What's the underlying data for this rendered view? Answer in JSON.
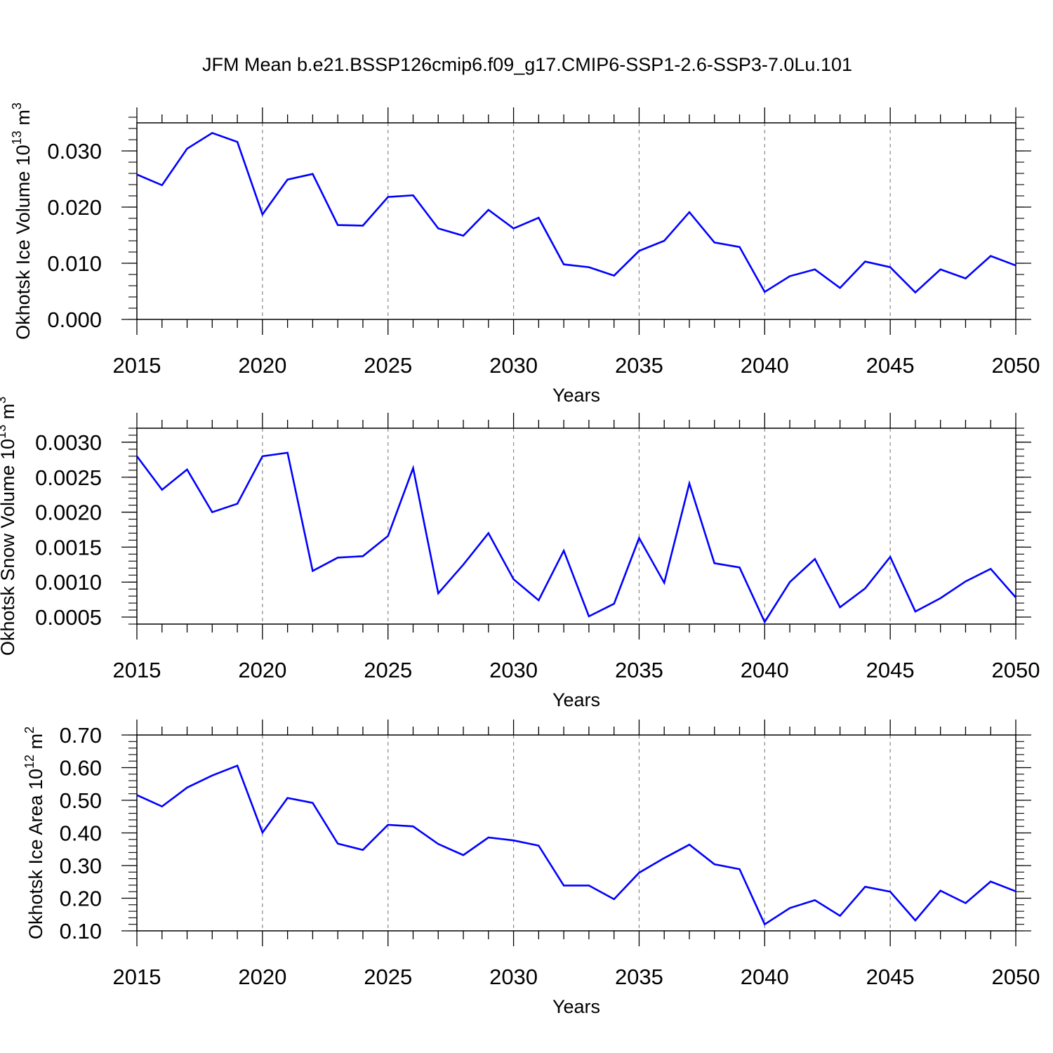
{
  "title": "JFM Mean b.e21.BSSP126cmip6.f09_g17.CMIP6-SSP1-2.6-SSP3-7.0Lu.101",
  "line_color": "#0000ff",
  "chart_data": [
    {
      "type": "line",
      "ylabel_main": "Okhotsk Ice Volume 10",
      "ylabel_exp": "13",
      "ylabel_unit": " m",
      "ylabel_unit_exp": "3",
      "xlabel": "Years",
      "xlim": [
        2015,
        2050
      ],
      "ylim": [
        0.0,
        0.035
      ],
      "yticks": [
        0.0,
        0.01,
        0.02,
        0.03
      ],
      "ytick_labels": [
        "0.000",
        "0.010",
        "0.020",
        "0.030"
      ],
      "yminor_step": 0.002,
      "xticks": [
        2015,
        2020,
        2025,
        2030,
        2035,
        2040,
        2045,
        2050
      ],
      "xtick_labels": [
        "2015",
        "2020",
        "2025",
        "2030",
        "2035",
        "2040",
        "2045",
        "2050"
      ],
      "grid": "vertical dashed",
      "x": [
        2015,
        2016,
        2017,
        2018,
        2019,
        2020,
        2021,
        2022,
        2023,
        2024,
        2025,
        2026,
        2027,
        2028,
        2029,
        2030,
        2031,
        2032,
        2033,
        2034,
        2035,
        2036,
        2037,
        2038,
        2039,
        2040,
        2041,
        2042,
        2043,
        2044,
        2045,
        2046,
        2047,
        2048,
        2049,
        2050
      ],
      "y": [
        0.0258,
        0.0239,
        0.0304,
        0.0332,
        0.0316,
        0.0187,
        0.0249,
        0.0259,
        0.0168,
        0.0167,
        0.0218,
        0.0221,
        0.0162,
        0.0149,
        0.0195,
        0.0162,
        0.0181,
        0.0098,
        0.0093,
        0.0078,
        0.0122,
        0.014,
        0.0191,
        0.0137,
        0.0129,
        0.0049,
        0.0077,
        0.0089,
        0.0056,
        0.0103,
        0.0093,
        0.0048,
        0.0089,
        0.0073,
        0.0113,
        0.0096
      ]
    },
    {
      "type": "line",
      "ylabel_main": "Okhotsk Snow Volume 10",
      "ylabel_exp": "13",
      "ylabel_unit": " m",
      "ylabel_unit_exp": "3",
      "xlabel": "Years",
      "xlim": [
        2015,
        2050
      ],
      "ylim": [
        0.0004,
        0.0032
      ],
      "yticks": [
        0.0005,
        0.001,
        0.0015,
        0.002,
        0.0025,
        0.003
      ],
      "ytick_labels": [
        "0.0005",
        "0.0010",
        "0.0015",
        "0.0020",
        "0.0025",
        "0.0030"
      ],
      "yminor_step": 0.0001,
      "xticks": [
        2015,
        2020,
        2025,
        2030,
        2035,
        2040,
        2045,
        2050
      ],
      "xtick_labels": [
        "2015",
        "2020",
        "2025",
        "2030",
        "2035",
        "2040",
        "2045",
        "2050"
      ],
      "grid": "vertical dashed",
      "x": [
        2015,
        2016,
        2017,
        2018,
        2019,
        2020,
        2021,
        2022,
        2023,
        2024,
        2025,
        2026,
        2027,
        2028,
        2029,
        2030,
        2031,
        2032,
        2033,
        2034,
        2035,
        2036,
        2037,
        2038,
        2039,
        2040,
        2041,
        2042,
        2043,
        2044,
        2045,
        2046,
        2047,
        2048,
        2049,
        2050
      ],
      "y": [
        0.0028,
        0.00232,
        0.00261,
        0.002,
        0.00212,
        0.0028,
        0.00285,
        0.00116,
        0.00135,
        0.00137,
        0.00166,
        0.00263,
        0.00084,
        0.00125,
        0.0017,
        0.00104,
        0.00074,
        0.00145,
        0.00051,
        0.00069,
        0.00163,
        0.00099,
        0.00241,
        0.00127,
        0.00121,
        0.00043,
        0.001,
        0.00133,
        0.00064,
        0.00091,
        0.00136,
        0.00058,
        0.00077,
        0.00101,
        0.00119,
        0.00078
      ]
    },
    {
      "type": "line",
      "ylabel_main": "Okhotsk Ice Area 10",
      "ylabel_exp": "12",
      "ylabel_unit": " m",
      "ylabel_unit_exp": "2",
      "xlabel": "Years",
      "xlim": [
        2015,
        2050
      ],
      "ylim": [
        0.1,
        0.7
      ],
      "yticks": [
        0.1,
        0.2,
        0.3,
        0.4,
        0.5,
        0.6,
        0.7
      ],
      "ytick_labels": [
        "0.10",
        "0.20",
        "0.30",
        "0.40",
        "0.50",
        "0.60",
        "0.70"
      ],
      "yminor_step": 0.02,
      "xticks": [
        2015,
        2020,
        2025,
        2030,
        2035,
        2040,
        2045,
        2050
      ],
      "xtick_labels": [
        "2015",
        "2020",
        "2025",
        "2030",
        "2035",
        "2040",
        "2045",
        "2050"
      ],
      "grid": "vertical dashed",
      "x": [
        2015,
        2016,
        2017,
        2018,
        2019,
        2020,
        2021,
        2022,
        2023,
        2024,
        2025,
        2026,
        2027,
        2028,
        2029,
        2030,
        2031,
        2032,
        2033,
        2034,
        2035,
        2036,
        2037,
        2038,
        2039,
        2040,
        2041,
        2042,
        2043,
        2044,
        2045,
        2046,
        2047,
        2048,
        2049,
        2050
      ],
      "y": [
        0.516,
        0.481,
        0.539,
        0.576,
        0.606,
        0.401,
        0.507,
        0.492,
        0.367,
        0.348,
        0.425,
        0.42,
        0.366,
        0.332,
        0.386,
        0.377,
        0.361,
        0.239,
        0.239,
        0.197,
        0.278,
        0.323,
        0.364,
        0.304,
        0.289,
        0.12,
        0.17,
        0.194,
        0.146,
        0.235,
        0.22,
        0.132,
        0.223,
        0.185,
        0.251,
        0.221
      ]
    }
  ]
}
